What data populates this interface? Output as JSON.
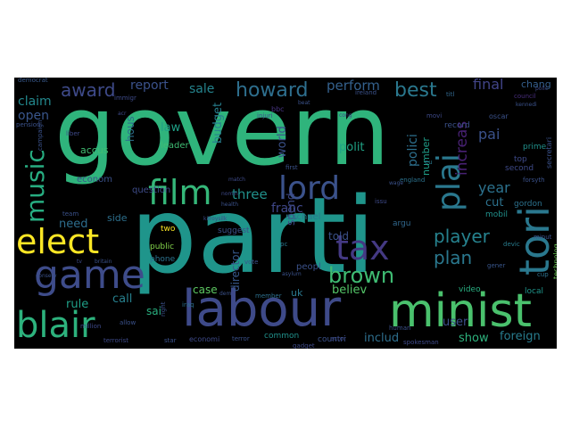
{
  "words": [
    {
      "text": "govern",
      "color": "#2fb47c"
    },
    {
      "text": "parti",
      "color": "#1f958b"
    },
    {
      "text": "labour",
      "color": "#3e4a89"
    },
    {
      "text": "minist",
      "color": "#4ac16d"
    },
    {
      "text": "film",
      "color": "#35b779"
    },
    {
      "text": "lord",
      "color": "#3b528b"
    },
    {
      "text": "game",
      "color": "#3e4c8a"
    },
    {
      "text": "elect",
      "color": "#fde725"
    },
    {
      "text": "blair",
      "color": "#2db27d"
    },
    {
      "text": "tori",
      "color": "#2a788e"
    },
    {
      "text": "tax",
      "color": "#443983"
    },
    {
      "text": "plai",
      "color": "#2a788e"
    },
    {
      "text": "brown",
      "color": "#3fbc73"
    },
    {
      "text": "music",
      "color": "#27ad81"
    },
    {
      "text": "player",
      "color": "#26828e"
    },
    {
      "text": "howard",
      "color": "#2e6f8e"
    },
    {
      "text": "best",
      "color": "#2a788e"
    },
    {
      "text": "award",
      "color": "#3e4a89"
    },
    {
      "text": "plan",
      "color": "#2a788e"
    },
    {
      "text": "increas",
      "color": "#482173"
    },
    {
      "text": "perform",
      "color": "#34618d"
    },
    {
      "text": "final",
      "color": "#414487"
    },
    {
      "text": "report",
      "color": "#3b528b"
    },
    {
      "text": "sale",
      "color": "#25848e"
    },
    {
      "text": "claim",
      "color": "#23898e"
    },
    {
      "text": "chang",
      "color": "#355f8d"
    },
    {
      "text": "three",
      "color": "#21918c"
    },
    {
      "text": "year",
      "color": "#2c728e"
    },
    {
      "text": "open",
      "color": "#39568c"
    },
    {
      "text": "world",
      "color": "#3b528b"
    },
    {
      "text": "pai",
      "color": "#3b528b"
    },
    {
      "text": "franc",
      "color": "#3f4788"
    },
    {
      "text": "polit",
      "color": "#20a486"
    },
    {
      "text": "budget",
      "color": "#277f8e"
    },
    {
      "text": "law",
      "color": "#1fa187"
    },
    {
      "text": "cut",
      "color": "#2c728e"
    },
    {
      "text": "told",
      "color": "#3b528b"
    },
    {
      "text": "need",
      "color": "#2e6e8e"
    },
    {
      "text": "call",
      "color": "#27808e"
    },
    {
      "text": "rule",
      "color": "#1fa088"
    },
    {
      "text": "believ",
      "color": "#54c568"
    },
    {
      "text": "user",
      "color": "#3c508b"
    },
    {
      "text": "show",
      "color": "#2db27d"
    },
    {
      "text": "foreign",
      "color": "#287c8e"
    },
    {
      "text": "includ",
      "color": "#2e6f8e"
    },
    {
      "text": "sai",
      "color": "#29af7f"
    },
    {
      "text": "case",
      "color": "#5ec962"
    },
    {
      "text": "uk",
      "color": "#2a788e"
    },
    {
      "text": "hous",
      "color": "#2d708e"
    },
    {
      "text": "spend",
      "color": "#3e4a89"
    },
    {
      "text": "polici",
      "color": "#2d708e"
    },
    {
      "text": "number",
      "color": "#1f9e89"
    },
    {
      "text": "director",
      "color": "#38598c"
    },
    {
      "text": "michael",
      "color": "#2a788e"
    },
    {
      "text": "question",
      "color": "#3e4c8a"
    },
    {
      "text": "econom",
      "color": "#3b528b"
    },
    {
      "text": "accus",
      "color": "#40bd72"
    },
    {
      "text": "leader",
      "color": "#3fbc73"
    },
    {
      "text": "side",
      "color": "#2d708e"
    },
    {
      "text": "two",
      "color": "#fde725"
    },
    {
      "text": "public",
      "color": "#84d44b"
    },
    {
      "text": "phone",
      "color": "#2c728e"
    },
    {
      "text": "suggest",
      "color": "#3b528b"
    },
    {
      "text": "peopl",
      "color": "#3b528b"
    },
    {
      "text": "argu",
      "color": "#31688e"
    },
    {
      "text": "record",
      "color": "#3b528b"
    },
    {
      "text": "prime",
      "color": "#21918c"
    },
    {
      "text": "top",
      "color": "#3e4a89"
    },
    {
      "text": "second",
      "color": "#3e4a89"
    },
    {
      "text": "gordon",
      "color": "#2c728e"
    },
    {
      "text": "mobil",
      "color": "#21918c"
    },
    {
      "text": "video",
      "color": "#28ae80"
    },
    {
      "text": "local",
      "color": "#1f958b"
    },
    {
      "text": "countri",
      "color": "#3b528b"
    },
    {
      "text": "economi",
      "color": "#3e4a89"
    },
    {
      "text": "common",
      "color": "#21918c"
    },
    {
      "text": "technolog",
      "color": "#6ece58"
    },
    {
      "text": "secretari",
      "color": "#3b528b"
    },
    {
      "text": "bbc",
      "color": "#46337f"
    },
    {
      "text": "council",
      "color": "#472d7b"
    },
    {
      "text": "ireland",
      "color": "#3b528b"
    },
    {
      "text": "titl",
      "color": "#31688e"
    },
    {
      "text": "democrat",
      "color": "#38598c"
    },
    {
      "text": "immigr",
      "color": "#3e4a89"
    },
    {
      "text": "pension",
      "color": "#3b528b"
    },
    {
      "text": "campaign",
      "color": "#3b528b"
    },
    {
      "text": "eu",
      "color": "#2a788e"
    },
    {
      "text": "england",
      "color": "#2c728e"
    },
    {
      "text": "first",
      "color": "#3b528b"
    },
    {
      "text": "forsyth",
      "color": "#3b528b"
    },
    {
      "text": "minut",
      "color": "#3b528b"
    },
    {
      "text": "cup",
      "color": "#2c728e"
    },
    {
      "text": "gener",
      "color": "#39568c"
    },
    {
      "text": "devic",
      "color": "#287c8e"
    },
    {
      "text": "pc",
      "color": "#2a788e"
    },
    {
      "text": "vote",
      "color": "#3b528b"
    },
    {
      "text": "member",
      "color": "#2d708e"
    },
    {
      "text": "right",
      "color": "#3b528b"
    },
    {
      "text": "iraq",
      "color": "#2d708e"
    },
    {
      "text": "terror",
      "color": "#3b528b"
    },
    {
      "text": "gadget",
      "color": "#3e4a89"
    },
    {
      "text": "star",
      "color": "#3b528b"
    },
    {
      "text": "terrorist",
      "color": "#3e4a89"
    },
    {
      "text": "allow",
      "color": "#3b528b"
    },
    {
      "text": "million",
      "color": "#3e4a89"
    },
    {
      "text": "team",
      "color": "#3b528b"
    },
    {
      "text": "actor",
      "color": "#3e4a89"
    },
    {
      "text": "human",
      "color": "#3b528b"
    },
    {
      "text": "spokesman",
      "color": "#3e4a89"
    },
    {
      "text": "oscar",
      "color": "#3b528b"
    },
    {
      "text": "movi",
      "color": "#3e4a89"
    },
    {
      "text": "injuri",
      "color": "#3b528b"
    },
    {
      "text": "match",
      "color": "#3e4a89"
    },
    {
      "text": "health",
      "color": "#3b528b"
    },
    {
      "text": "kilroysilk",
      "color": "#3e4a89"
    },
    {
      "text": "asylum",
      "color": "#3b528b"
    },
    {
      "text": "issu",
      "color": "#3e4a89"
    },
    {
      "text": "wage",
      "color": "#3b528b"
    },
    {
      "text": "liber",
      "color": "#3e4a89"
    },
    {
      "text": "britain",
      "color": "#3b528b"
    },
    {
      "text": "tv",
      "color": "#3e4a89"
    },
    {
      "text": "conserv",
      "color": "#3b528b"
    },
    {
      "text": "polic",
      "color": "#3e4a89"
    },
    {
      "text": "kennedi",
      "color": "#3b528b"
    },
    {
      "text": "cong",
      "color": "#3e4a89"
    },
    {
      "text": "beat",
      "color": "#3b528b"
    },
    {
      "text": "acr",
      "color": "#3e4a89"
    },
    {
      "text": "dem",
      "color": "#3b528b"
    },
    {
      "text": "nomin",
      "color": "#3e4a89"
    }
  ]
}
